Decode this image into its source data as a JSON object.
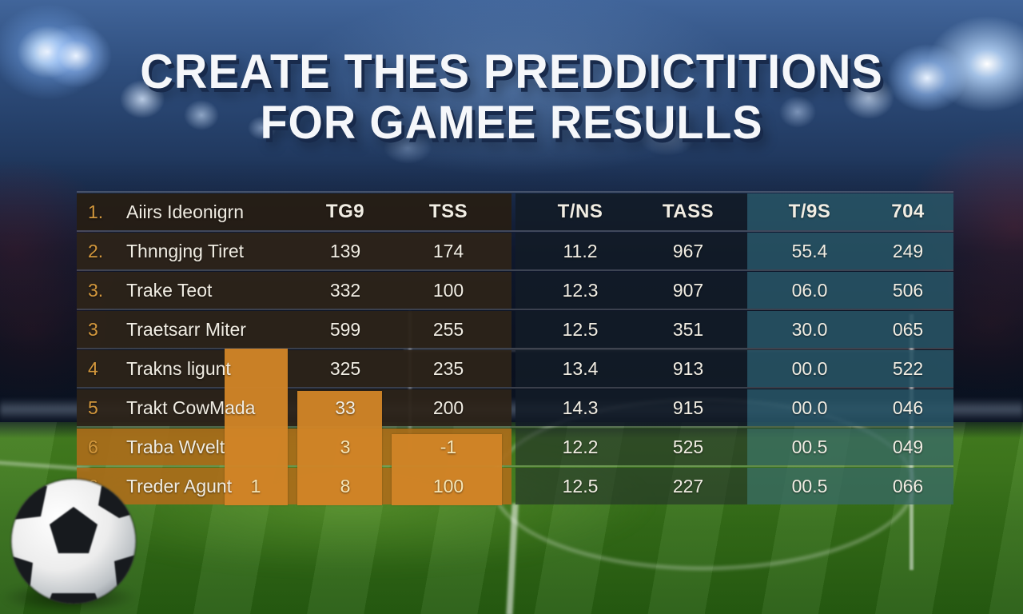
{
  "title": {
    "line1": "CREATE THES PREDDICTITIONS",
    "line2": "FOR GAMEE RESULLS"
  },
  "table": {
    "header": {
      "rank": "1.",
      "name": "Aiirs Ideonigrn",
      "cols": [
        "TG9",
        "TSS",
        "T/NS",
        "TASS",
        "T/9S",
        "704"
      ]
    },
    "rows": [
      {
        "rank": "2.",
        "name": "Thnngjng Tiret",
        "bar1": "",
        "tg9": "139",
        "tss": "174",
        "tns": "11.2",
        "tass": "967",
        "t9s": "55.4",
        "c704": "249"
      },
      {
        "rank": "3.",
        "name": "Trake Teot",
        "bar1": "",
        "tg9": "332",
        "tss": "100",
        "tns": "12.3",
        "tass": "907",
        "t9s": "06.0",
        "c704": "506"
      },
      {
        "rank": "3",
        "name": "Traetsarr Miter",
        "bar1": "",
        "tg9": "599",
        "tss": "255",
        "tns": "12.5",
        "tass": "351",
        "t9s": "30.0",
        "c704": "065"
      },
      {
        "rank": "4",
        "name": "Trakns ligunt",
        "bar1": "",
        "tg9": "325",
        "tss": "235",
        "tns": "13.4",
        "tass": "913",
        "t9s": "00.0",
        "c704": "522"
      },
      {
        "rank": "5",
        "name": "Trakt CowMada",
        "bar1": "",
        "tg9": "33",
        "tss": "200",
        "tns": "14.3",
        "tass": "915",
        "t9s": "00.0",
        "c704": "046"
      },
      {
        "rank": "6",
        "name": "Traba Wvelt",
        "bar1": "",
        "tg9": "3",
        "tss": "-1",
        "tns": "12.2",
        "tass": "525",
        "t9s": "00.5",
        "c704": "049"
      },
      {
        "rank": "6",
        "name": "Treder Agunt",
        "bar1": "1",
        "tg9": "8",
        "tss": "100",
        "tns": "12.5",
        "tass": "227",
        "t9s": "00.5",
        "c704": "066"
      }
    ]
  },
  "chart_data": {
    "type": "table",
    "title": "CREATE THES PREDDICTITIONS FOR GAMEE RESULLS",
    "columns": [
      "rank",
      "name",
      "TG9",
      "TSS",
      "T/NS",
      "TASS",
      "T/9S",
      "704"
    ],
    "rows": [
      [
        "1.",
        "Aiirs Ideonigrn",
        "TG9",
        "TSS",
        "T/NS",
        "TASS",
        "T/9S",
        "704"
      ],
      [
        "2.",
        "Thnngjng Tiret",
        "139",
        "174",
        "11.2",
        "967",
        "55.4",
        "249"
      ],
      [
        "3.",
        "Trake Teot",
        "332",
        "100",
        "12.3",
        "907",
        "06.0",
        "506"
      ],
      [
        "3",
        "Traetsarr Miter",
        "599",
        "255",
        "12.5",
        "351",
        "30.0",
        "065"
      ],
      [
        "4",
        "Trakns ligunt",
        "325",
        "235",
        "13.4",
        "913",
        "00.0",
        "522"
      ],
      [
        "5",
        "Trakt CowMada",
        "33",
        "200",
        "14.3",
        "915",
        "00.0",
        "046"
      ],
      [
        "6",
        "Traba Wvelt",
        "3",
        "-1",
        "12.2",
        "525",
        "00.5",
        "049"
      ],
      [
        "6",
        "Treder Agunt | 1",
        "8",
        "100",
        "12.5",
        "227",
        "00.5",
        "066"
      ]
    ],
    "overlay_bars": {
      "type": "bar",
      "description": "three orange vertical bars overlaid on lower-left of table, tallest to shortest left to right",
      "relative_heights": [
        196,
        143,
        89
      ],
      "color": "#d08426"
    }
  },
  "colors": {
    "bar_orange": "#d08426",
    "row_brown": "#2d2419",
    "row_navy": "#121b27",
    "row_teal": "#285465",
    "orange_row": "#aa6c1a",
    "rank_amber": "#d2973c",
    "title_white": "#f5f7fa",
    "field_green": "#3f7a1d",
    "sky_blue": "#2e4d7c"
  },
  "decorations": {
    "ball": "soccer-ball",
    "background": "stadium-with-floodlights-and-pitch"
  }
}
